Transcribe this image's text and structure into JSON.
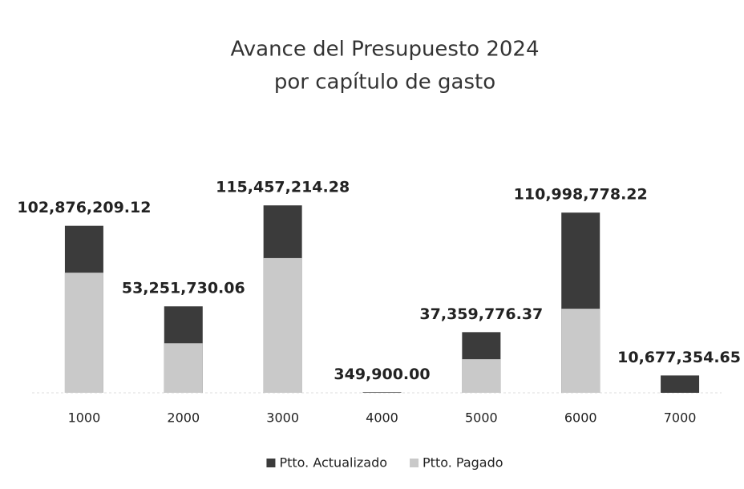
{
  "chart_data": {
    "type": "bar",
    "title": "Avance del Presupuesto 2024",
    "subtitle": "por capítulo de gasto",
    "categories": [
      "1000",
      "2000",
      "3000",
      "4000",
      "5000",
      "6000",
      "7000"
    ],
    "series": [
      {
        "name": "Ptto. Actualizado",
        "color": "#3b3b3b",
        "values": [
          102876209.12,
          53251730.06,
          115457214.28,
          349900.0,
          37359776.37,
          110998778.22,
          10677354.65
        ],
        "value_labels": [
          "102,876,209.12",
          "53,251,730.06",
          "115,457,214.28",
          "349,900.00",
          "37,359,776.37",
          "110,998,778.22",
          "10,677,354.65"
        ]
      },
      {
        "name": "Ptto. Pagado",
        "color": "#c9c9c9",
        "values": [
          74000000,
          30500000,
          83000000,
          0,
          20700000,
          51800000,
          0
        ]
      }
    ],
    "ylim": [
      0,
      120000000
    ],
    "legend": "bottom"
  }
}
